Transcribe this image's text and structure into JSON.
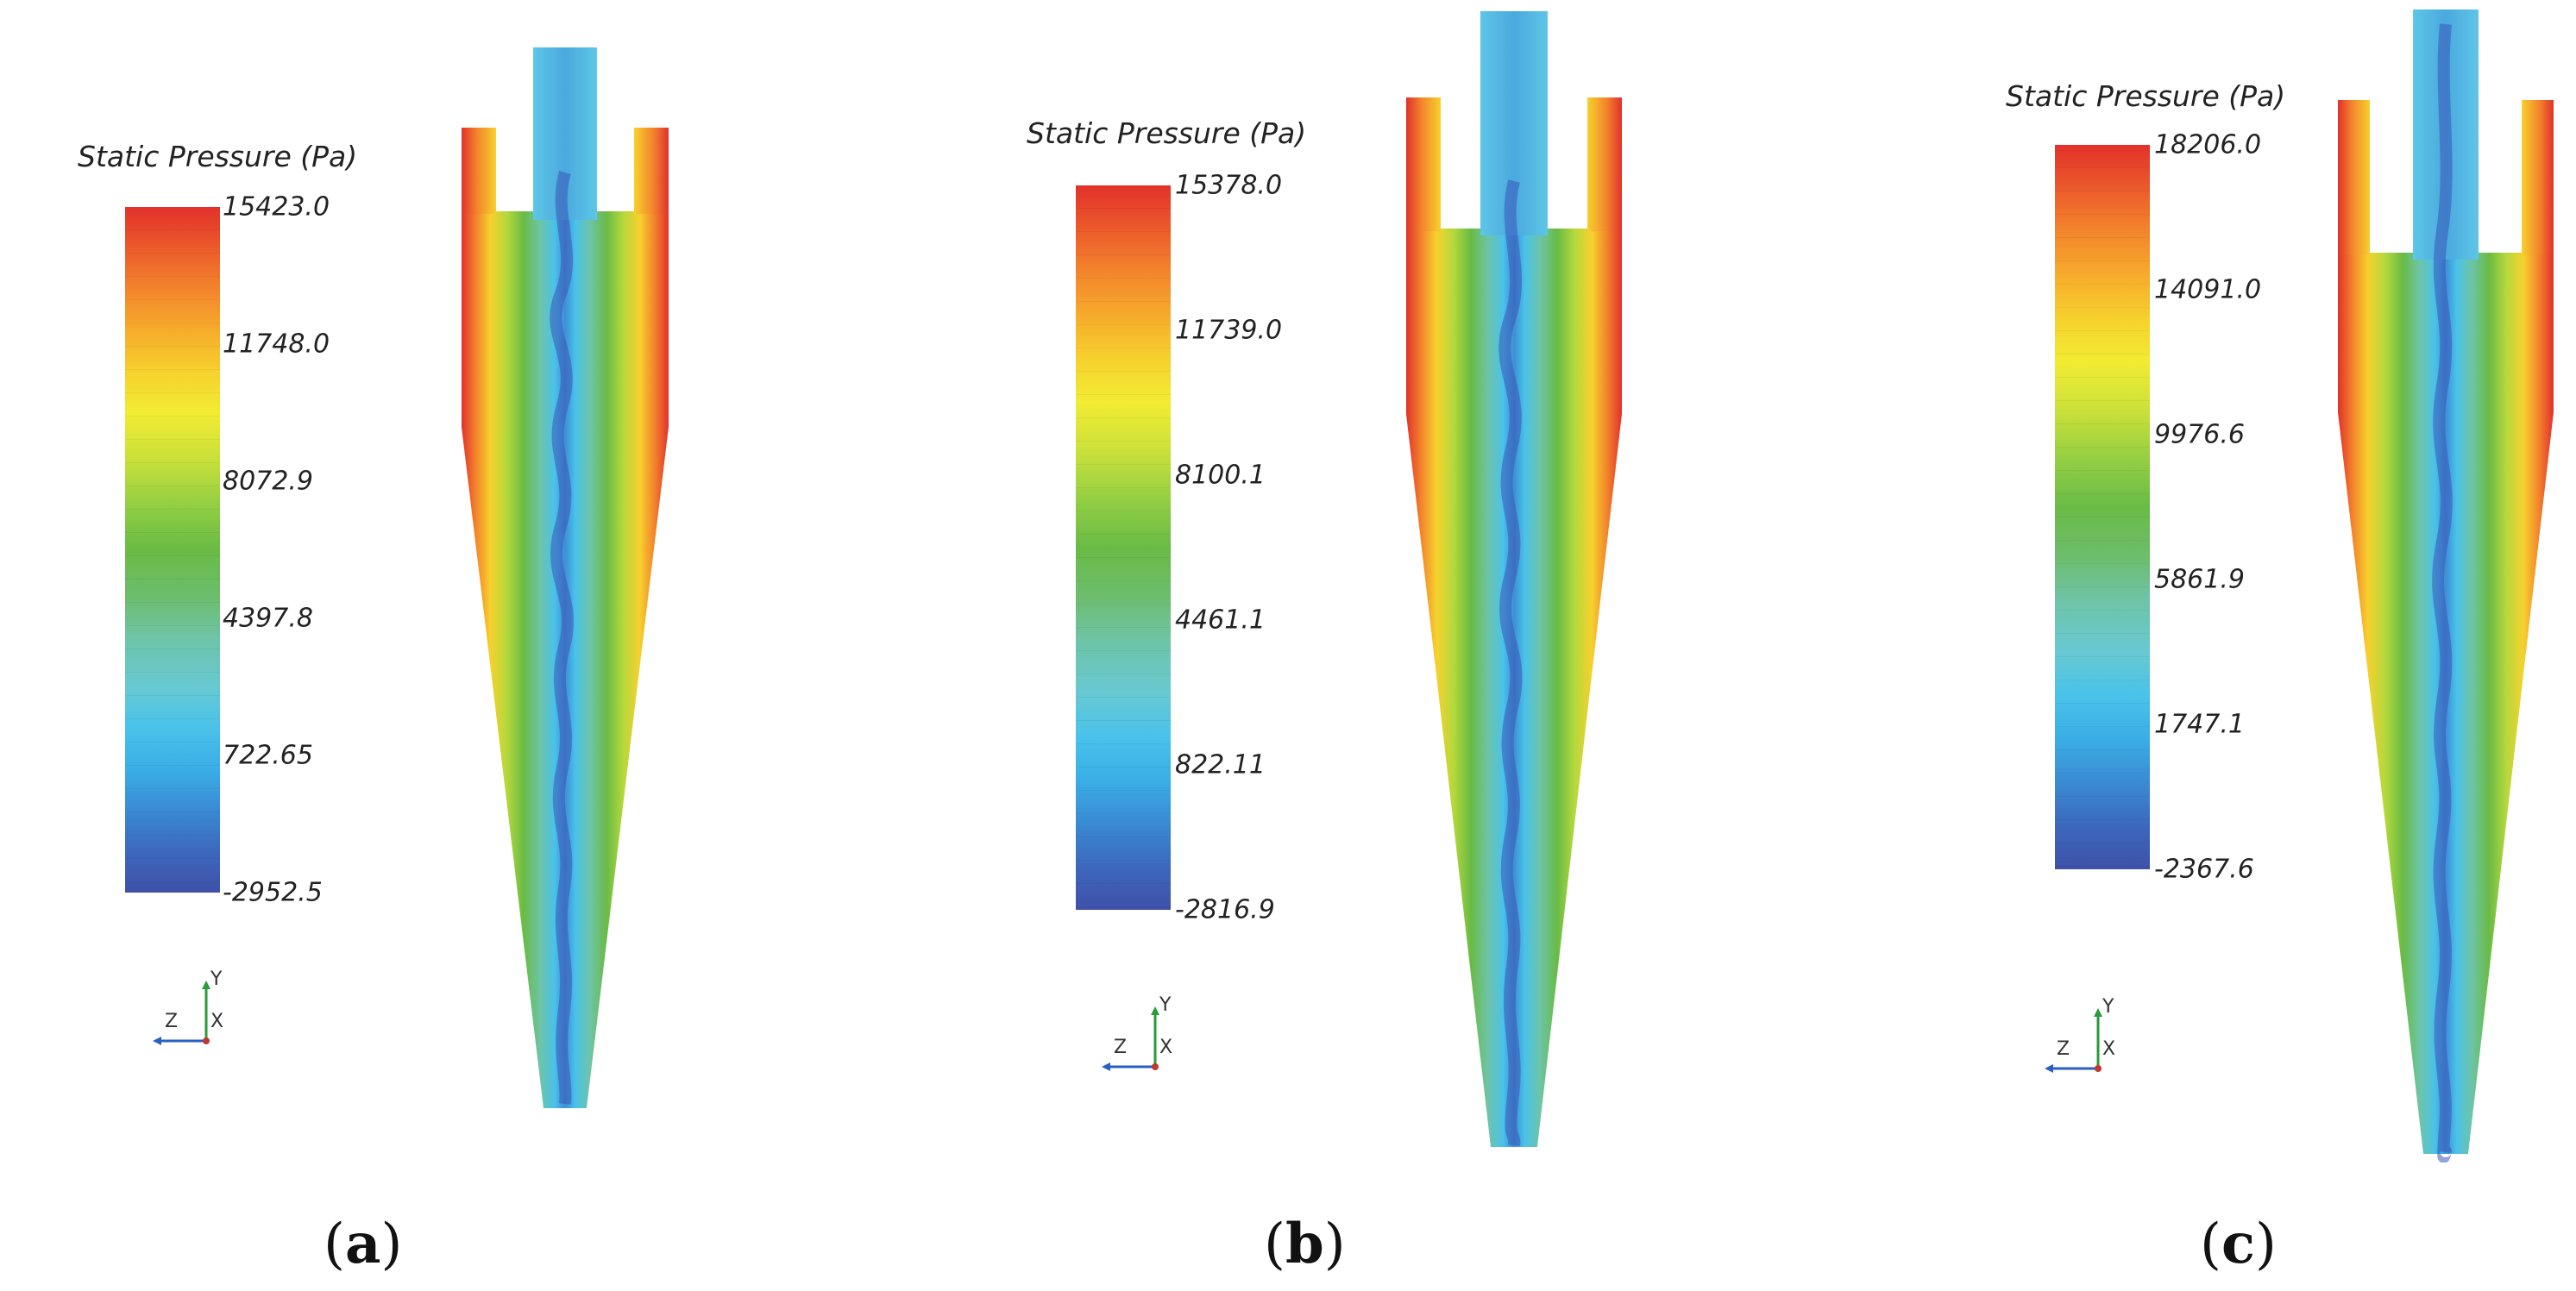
{
  "panels": [
    {
      "id": "a",
      "legend_title": "Static Pressure (Pa)",
      "ticks": [
        "15423.0",
        "11748.0",
        "8072.9",
        "4397.8",
        "722.65",
        "-2952.5"
      ],
      "caption_letter": "a",
      "axis": {
        "y": "Y",
        "z": "Z",
        "x": "X"
      }
    },
    {
      "id": "b",
      "legend_title": "Static Pressure (Pa)",
      "ticks": [
        "15378.0",
        "11739.0",
        "8100.1",
        "4461.1",
        "822.11",
        "-2816.9"
      ],
      "caption_letter": "b",
      "axis": {
        "y": "Y",
        "z": "Z",
        "x": "X"
      }
    },
    {
      "id": "c",
      "legend_title": "Static Pressure (Pa)",
      "ticks": [
        "18206.0",
        "14091.0",
        "9976.6",
        "5861.9",
        "1747.1",
        "-2367.6"
      ],
      "caption_letter": "c",
      "axis": {
        "y": "Y",
        "z": "Z",
        "x": "X"
      }
    }
  ],
  "colors": {
    "high": "#e2312b",
    "mid_high": "#f2ec32",
    "mid": "#69bb45",
    "mid_low": "#49c2ea",
    "low": "#3f51a8"
  }
}
